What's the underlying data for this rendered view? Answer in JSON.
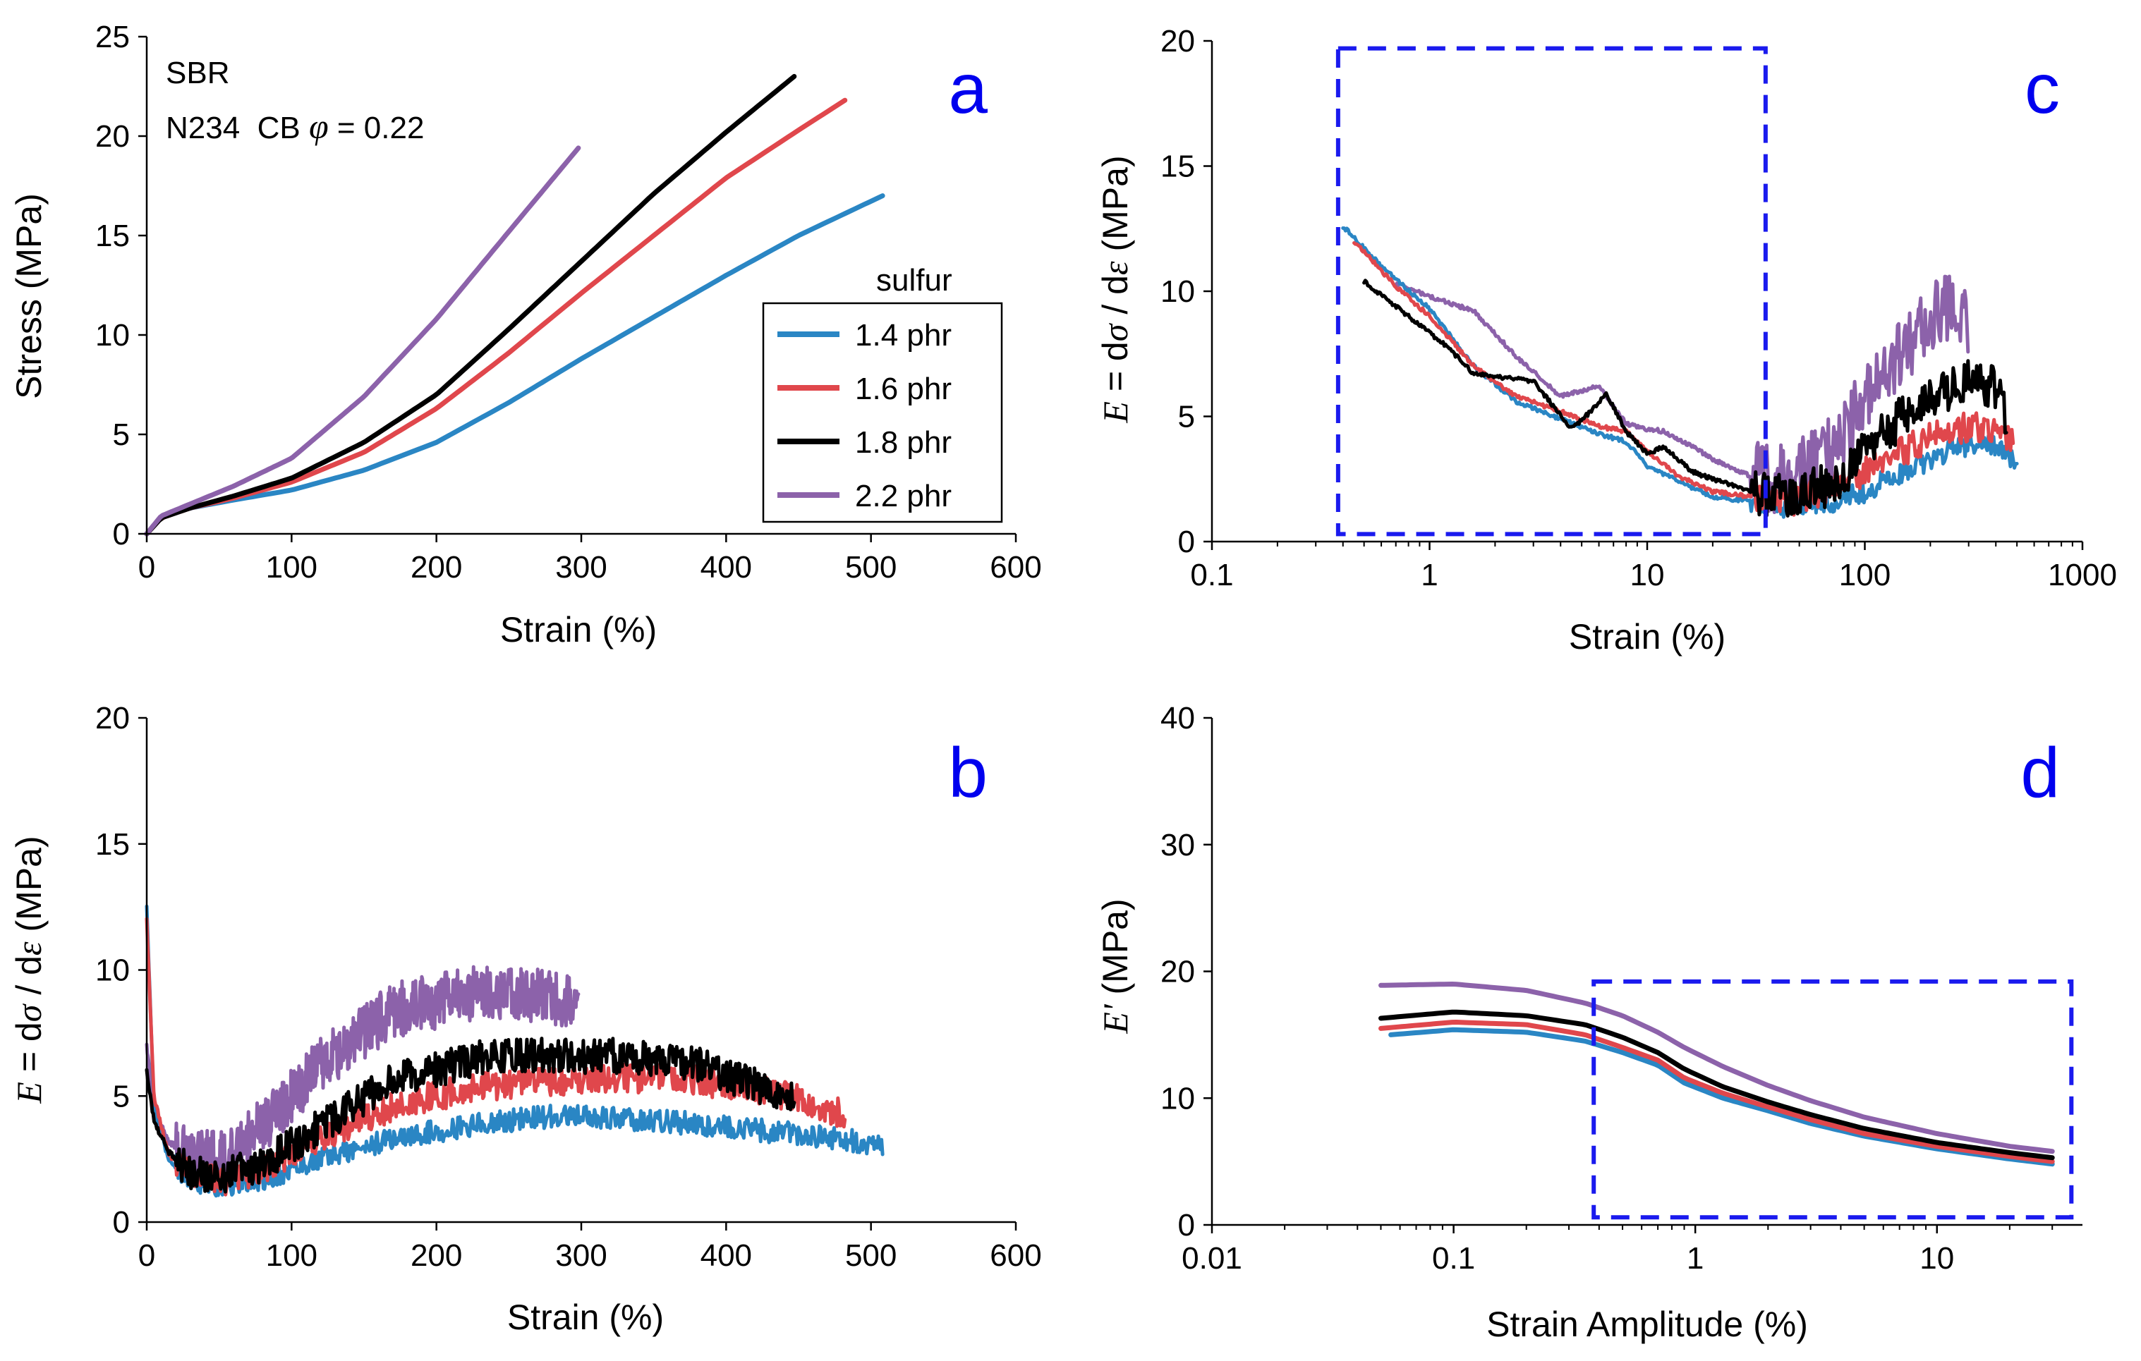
{
  "colors": {
    "s14": "#2a86c4",
    "s16": "#e0474c",
    "s18": "#000000",
    "s22": "#8c62aa",
    "letter": "#0000ee",
    "box": "#1a1aee"
  },
  "legend": {
    "title": "sulfur",
    "entries": [
      {
        "label": "1.4 phr",
        "color_key": "s14"
      },
      {
        "label": "1.6 phr",
        "color_key": "s16"
      },
      {
        "label": "1.8 phr",
        "color_key": "s18"
      },
      {
        "label": "2.2 phr",
        "color_key": "s22"
      }
    ]
  },
  "annotation": {
    "material": "SBR",
    "filler_prefix": "N234  CB ",
    "phi_symbol": "φ",
    "phi_value": " = 0.22"
  },
  "chart_data": [
    {
      "panel": "a",
      "type": "line",
      "xlabel": "Strain (%)",
      "ylabel": "Stress (MPa)",
      "xlim": [
        0,
        600
      ],
      "ylim": [
        0,
        25
      ],
      "x_ticks": [
        0,
        100,
        200,
        300,
        400,
        500,
        600
      ],
      "y_ticks": [
        0,
        5,
        10,
        15,
        20,
        25
      ],
      "series": [
        {
          "name": "1.4 phr",
          "color_key": "s14",
          "x": [
            0,
            10,
            30,
            60,
            100,
            150,
            200,
            250,
            300,
            350,
            400,
            450,
            508
          ],
          "y": [
            0,
            0.8,
            1.3,
            1.7,
            2.2,
            3.2,
            4.6,
            6.6,
            8.8,
            10.9,
            13.0,
            15.0,
            17.0
          ]
        },
        {
          "name": "1.6 phr",
          "color_key": "s16",
          "x": [
            0,
            10,
            30,
            60,
            100,
            150,
            200,
            250,
            300,
            350,
            400,
            450,
            482
          ],
          "y": [
            0,
            0.8,
            1.3,
            1.8,
            2.6,
            4.1,
            6.3,
            9.1,
            12.1,
            15.0,
            17.9,
            20.3,
            21.8
          ]
        },
        {
          "name": "1.8 phr",
          "color_key": "s18",
          "x": [
            0,
            10,
            30,
            60,
            100,
            150,
            200,
            250,
            300,
            350,
            400,
            447
          ],
          "y": [
            0,
            0.8,
            1.3,
            1.9,
            2.8,
            4.6,
            7.0,
            10.3,
            13.7,
            17.1,
            20.2,
            23.0
          ]
        },
        {
          "name": "2.2 phr",
          "color_key": "s22",
          "x": [
            0,
            10,
            30,
            60,
            100,
            150,
            200,
            250,
            298
          ],
          "y": [
            0,
            0.9,
            1.5,
            2.4,
            3.8,
            6.9,
            10.8,
            15.2,
            19.4
          ]
        }
      ]
    },
    {
      "panel": "b",
      "type": "line",
      "xlabel": "Strain (%)",
      "ylabel_pre": "E",
      "ylabel_eq": " = d",
      "ylabel_sigma": "σ",
      "ylabel_slash": " / d",
      "ylabel_eps": "ε",
      "ylabel_post": " (MPa)",
      "xlim": [
        0,
        600
      ],
      "ylim": [
        0,
        20
      ],
      "x_ticks": [
        0,
        100,
        200,
        300,
        400,
        500,
        600
      ],
      "y_ticks": [
        0,
        5,
        10,
        15,
        20
      ],
      "series": [
        {
          "name": "1.4 phr",
          "color_key": "s14",
          "noise": 0.45,
          "end": 508,
          "x": [
            0,
            5,
            15,
            30,
            50,
            80,
            120,
            170,
            230,
            280,
            330,
            380,
            430,
            480,
            508
          ],
          "y": [
            12.5,
            4.5,
            2.5,
            1.7,
            1.4,
            1.7,
            2.5,
            3.3,
            3.9,
            4.2,
            4.1,
            3.9,
            3.6,
            3.3,
            3.0
          ]
        },
        {
          "name": "1.6 phr",
          "color_key": "s16",
          "noise": 0.6,
          "end": 482,
          "x": [
            0,
            5,
            15,
            30,
            50,
            80,
            120,
            170,
            230,
            280,
            330,
            380,
            430,
            482
          ],
          "y": [
            12.0,
            5.0,
            2.7,
            1.9,
            1.6,
            2.1,
            3.3,
            4.6,
            5.4,
            5.6,
            5.7,
            5.6,
            5.2,
            4.3
          ]
        },
        {
          "name": "1.8 phr",
          "color_key": "s18",
          "noise": 0.7,
          "end": 447,
          "x": [
            0,
            5,
            15,
            30,
            50,
            80,
            120,
            170,
            230,
            280,
            330,
            380,
            447
          ],
          "y": [
            6.0,
            4.0,
            2.8,
            2.0,
            1.8,
            2.3,
            3.8,
            5.6,
            6.5,
            6.6,
            6.6,
            6.3,
            4.8
          ]
        },
        {
          "name": "2.2 phr",
          "color_key": "s22",
          "noise": 1.1,
          "end": 298,
          "x": [
            0,
            5,
            15,
            30,
            50,
            80,
            120,
            170,
            230,
            280,
            298
          ],
          "y": [
            7.0,
            4.5,
            3.2,
            2.6,
            2.5,
            3.8,
            6.2,
            8.4,
            9.1,
            8.9,
            8.8
          ]
        }
      ]
    },
    {
      "panel": "c",
      "type": "line",
      "xscale": "log",
      "xlabel": "Strain (%)",
      "ylabel_pre": "E",
      "ylabel_eq": " = d",
      "ylabel_sigma": "σ",
      "ylabel_slash": " / d",
      "ylabel_eps": "ε",
      "ylabel_post": " (MPa)",
      "xlim": [
        0.1,
        1000
      ],
      "ylim": [
        0,
        20
      ],
      "x_ticks": [
        0.1,
        1,
        10,
        100,
        1000
      ],
      "x_tick_labels": [
        "0.1",
        "1",
        "10",
        "100",
        "1000"
      ],
      "y_ticks": [
        0,
        5,
        10,
        15,
        20
      ],
      "box": {
        "x": [
          0.38,
          35
        ],
        "y": [
          0.3,
          19.7
        ]
      },
      "series": [
        {
          "name": "1.4 phr",
          "color_key": "s14",
          "noise": 0.45,
          "x": [
            0.4,
            0.6,
            1,
            1.6,
            2.5,
            4,
            6,
            8,
            10,
            14,
            20,
            30,
            45,
            70,
            100,
            150,
            200,
            300,
            400,
            500
          ],
          "y": [
            12.6,
            11.0,
            9.3,
            7.0,
            5.6,
            4.9,
            4.3,
            4.0,
            3.0,
            2.4,
            1.8,
            1.6,
            1.4,
            1.6,
            2.0,
            2.8,
            3.3,
            3.9,
            3.8,
            3.0
          ]
        },
        {
          "name": "1.6 phr",
          "color_key": "s16",
          "noise": 0.6,
          "x": [
            0.45,
            0.7,
            1,
            1.6,
            2.5,
            4,
            6,
            8,
            10,
            14,
            20,
            30,
            45,
            70,
            100,
            150,
            200,
            300,
            400,
            480
          ],
          "y": [
            12.0,
            10.2,
            9.0,
            7.0,
            5.8,
            5.2,
            4.6,
            4.4,
            3.6,
            2.6,
            2.0,
            1.8,
            1.6,
            2.1,
            2.8,
            3.6,
            4.2,
            4.6,
            4.5,
            4.0
          ]
        },
        {
          "name": "1.8 phr",
          "color_key": "s18",
          "noise": 0.9,
          "x": [
            0.5,
            0.8,
            1.2,
            1.6,
            2,
            3,
            4.5,
            5.5,
            6.5,
            8,
            10,
            12,
            16,
            20,
            30,
            45,
            70,
            100,
            150,
            200,
            300,
            400,
            447
          ],
          "y": [
            10.4,
            9.0,
            7.8,
            6.7,
            6.6,
            6.4,
            4.5,
            5.2,
            5.9,
            4.4,
            3.5,
            3.8,
            2.8,
            2.5,
            2.0,
            1.8,
            2.3,
            3.5,
            5.0,
            5.8,
            6.5,
            6.2,
            4.8
          ]
        },
        {
          "name": "2.2 phr",
          "color_key": "s22",
          "noise": 1.4,
          "x": [
            0.7,
            1,
            1.6,
            2.5,
            4,
            6,
            8,
            10,
            12,
            16,
            20,
            30,
            45,
            70,
            100,
            150,
            200,
            250,
            298
          ],
          "y": [
            10.3,
            9.8,
            9.2,
            7.4,
            5.8,
            6.2,
            4.7,
            4.5,
            4.4,
            3.8,
            3.3,
            2.6,
            2.5,
            3.6,
            5.6,
            7.6,
            9.0,
            9.3,
            8.8
          ]
        }
      ]
    },
    {
      "panel": "d",
      "type": "line",
      "xscale": "log",
      "xlabel": "Strain Amplitude (%)",
      "ylabel_pre": "E'",
      "ylabel_post": " (MPa)",
      "xlim": [
        0.01,
        40
      ],
      "ylim": [
        0,
        40
      ],
      "x_ticks": [
        0.01,
        0.1,
        1,
        10
      ],
      "x_tick_labels": [
        "0.01",
        "0.1",
        "1",
        "10"
      ],
      "y_ticks": [
        0,
        10,
        20,
        30,
        40
      ],
      "box": {
        "x": [
          0.38,
          36
        ],
        "y": [
          0.6,
          19.2
        ]
      },
      "series": [
        {
          "name": "1.4 phr",
          "color_key": "s14",
          "x": [
            0.055,
            0.1,
            0.2,
            0.35,
            0.5,
            0.7,
            0.9,
            1.3,
            2,
            3,
            5,
            10,
            20,
            30
          ],
          "y": [
            15.0,
            15.4,
            15.2,
            14.5,
            13.6,
            12.6,
            11.2,
            10.0,
            9.0,
            8.0,
            7.0,
            6.0,
            5.2,
            4.8
          ]
        },
        {
          "name": "1.6 phr",
          "color_key": "s16",
          "x": [
            0.05,
            0.1,
            0.2,
            0.35,
            0.5,
            0.7,
            0.9,
            1.3,
            2,
            3,
            5,
            10,
            20,
            30
          ],
          "y": [
            15.5,
            16.0,
            15.8,
            15.0,
            14.0,
            13.0,
            11.6,
            10.4,
            9.3,
            8.3,
            7.2,
            6.2,
            5.4,
            5.0
          ]
        },
        {
          "name": "1.8 phr",
          "color_key": "s18",
          "x": [
            0.05,
            0.1,
            0.2,
            0.35,
            0.5,
            0.7,
            0.9,
            1.3,
            2,
            3,
            5,
            10,
            20,
            30
          ],
          "y": [
            16.3,
            16.8,
            16.5,
            15.8,
            14.8,
            13.6,
            12.3,
            10.9,
            9.7,
            8.7,
            7.6,
            6.5,
            5.7,
            5.3
          ]
        },
        {
          "name": "2.2 phr",
          "color_key": "s22",
          "x": [
            0.05,
            0.1,
            0.2,
            0.35,
            0.5,
            0.7,
            0.9,
            1.3,
            2,
            3,
            5,
            10,
            20,
            30
          ],
          "y": [
            18.9,
            19.0,
            18.5,
            17.5,
            16.5,
            15.2,
            14.0,
            12.5,
            11.0,
            9.8,
            8.5,
            7.2,
            6.2,
            5.8
          ]
        }
      ]
    }
  ]
}
